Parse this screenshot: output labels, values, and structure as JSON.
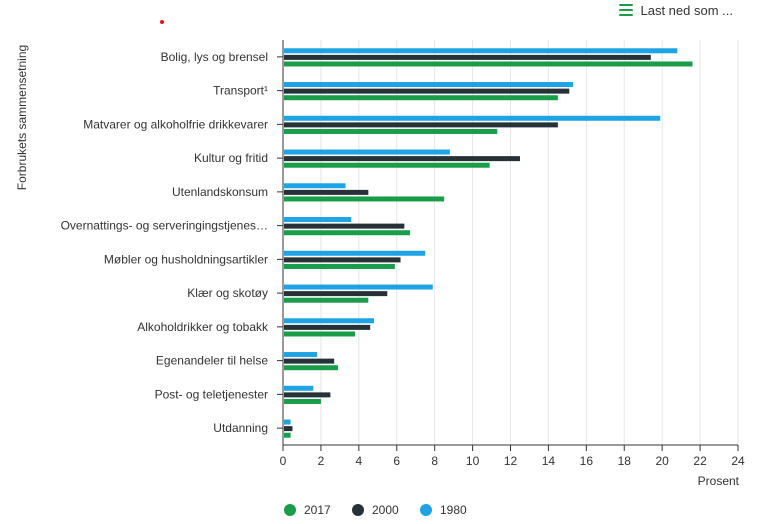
{
  "toolbar": {
    "download_label": "Last ned som ...",
    "download_icon": "hamburger-menu-icon"
  },
  "colors": {
    "s2017": "#1a9d49",
    "s2000": "#263238",
    "s1980": "#1ea3e5",
    "grid": "#e6e6e6",
    "axis": "#333333"
  },
  "chart_data": {
    "type": "bar",
    "orientation": "horizontal",
    "title": "",
    "xlabel": "Prosent",
    "ylabel": "Forbrukets sammensetning",
    "xlim": [
      0,
      24
    ],
    "xticks": [
      0,
      2,
      4,
      6,
      8,
      10,
      12,
      14,
      16,
      18,
      20,
      22,
      24
    ],
    "grid": true,
    "legend_position": "bottom-center",
    "categories": [
      "Bolig, lys og brensel",
      "Transport¹",
      "Matvarer og alkoholfrie drikkevarer",
      "Kultur og fritid",
      "Utenlandskonsum",
      "Overnattings- og   serveringingstjenes…",
      "Møbler og husholdningsartikler",
      "Klær og skotøy",
      "Alkoholdrikker og tobakk",
      "Egenandeler til helse",
      "Post- og teletjenester",
      "Utdanning"
    ],
    "series": [
      {
        "name": "1980",
        "values": [
          20.8,
          15.3,
          19.9,
          8.8,
          3.3,
          3.6,
          7.5,
          7.9,
          4.8,
          1.8,
          1.6,
          0.4
        ]
      },
      {
        "name": "2000",
        "values": [
          19.4,
          15.1,
          14.5,
          12.5,
          4.5,
          6.4,
          6.2,
          5.5,
          4.6,
          2.7,
          2.5,
          0.5
        ]
      },
      {
        "name": "2017",
        "values": [
          21.6,
          14.5,
          11.3,
          10.9,
          8.5,
          6.7,
          5.9,
          4.5,
          3.8,
          2.9,
          2.0,
          0.4
        ]
      }
    ],
    "legend": [
      "2017",
      "2000",
      "1980"
    ]
  }
}
